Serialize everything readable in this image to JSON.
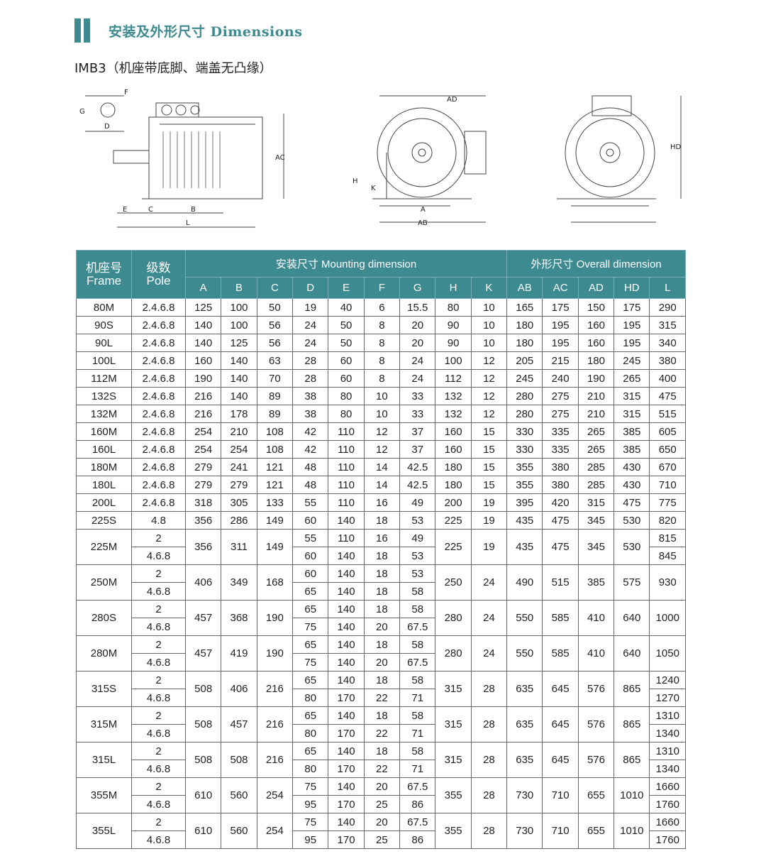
{
  "header": {
    "title": "安装及外形尺寸 Dimensions",
    "subtitle": "IMB3（机座带底脚、端盖无凸缘）"
  },
  "drawing_labels": {
    "F": "F",
    "G": "G",
    "D": "D",
    "E": "E",
    "C": "C",
    "B": "B",
    "L": "L",
    "AC": "AC",
    "AD": "AD",
    "H": "H",
    "K": "K",
    "A": "A",
    "AB": "AB",
    "HD": "HD"
  },
  "table": {
    "frame_header": [
      "机座号",
      "Frame"
    ],
    "pole_header": [
      "级数",
      "Pole"
    ],
    "mounting_header": "安装尺寸 Mounting dimension",
    "overall_header": "外形尺寸 Overall dimension",
    "mounting_cols": [
      "A",
      "B",
      "C",
      "D",
      "E",
      "F",
      "G",
      "H",
      "K"
    ],
    "overall_cols": [
      "AB",
      "AC",
      "AD",
      "HD",
      "L"
    ],
    "rows": [
      {
        "frame": "80M",
        "A": "125",
        "B": "100",
        "C": "50",
        "H": "80",
        "K": "10",
        "AB": "165",
        "AC": "175",
        "AD": "150",
        "HD": "175",
        "sub": [
          {
            "pole": "2.4.6.8",
            "D": "19",
            "E": "40",
            "F": "6",
            "G": "15.5",
            "L": "290"
          }
        ]
      },
      {
        "frame": "90S",
        "A": "140",
        "B": "100",
        "C": "56",
        "H": "90",
        "K": "10",
        "AB": "180",
        "AC": "195",
        "AD": "160",
        "HD": "195",
        "sub": [
          {
            "pole": "2.4.6.8",
            "D": "24",
            "E": "50",
            "F": "8",
            "G": "20",
            "L": "315"
          }
        ]
      },
      {
        "frame": "90L",
        "A": "140",
        "B": "125",
        "C": "56",
        "H": "90",
        "K": "10",
        "AB": "180",
        "AC": "195",
        "AD": "160",
        "HD": "195",
        "sub": [
          {
            "pole": "2.4.6.8",
            "D": "24",
            "E": "50",
            "F": "8",
            "G": "20",
            "L": "340"
          }
        ]
      },
      {
        "frame": "100L",
        "A": "160",
        "B": "140",
        "C": "63",
        "H": "100",
        "K": "12",
        "AB": "205",
        "AC": "215",
        "AD": "180",
        "HD": "245",
        "sub": [
          {
            "pole": "2.4.6.8",
            "D": "28",
            "E": "60",
            "F": "8",
            "G": "24",
            "L": "380"
          }
        ]
      },
      {
        "frame": "112M",
        "A": "190",
        "B": "140",
        "C": "70",
        "H": "112",
        "K": "12",
        "AB": "245",
        "AC": "240",
        "AD": "190",
        "HD": "265",
        "sub": [
          {
            "pole": "2.4.6.8",
            "D": "28",
            "E": "60",
            "F": "8",
            "G": "24",
            "L": "400"
          }
        ]
      },
      {
        "frame": "132S",
        "A": "216",
        "B": "140",
        "C": "89",
        "H": "132",
        "K": "12",
        "AB": "280",
        "AC": "275",
        "AD": "210",
        "HD": "315",
        "sub": [
          {
            "pole": "2.4.6.8",
            "D": "38",
            "E": "80",
            "F": "10",
            "G": "33",
            "L": "475"
          }
        ]
      },
      {
        "frame": "132M",
        "A": "216",
        "B": "178",
        "C": "89",
        "H": "132",
        "K": "12",
        "AB": "280",
        "AC": "275",
        "AD": "210",
        "HD": "315",
        "sub": [
          {
            "pole": "2.4.6.8",
            "D": "38",
            "E": "80",
            "F": "10",
            "G": "33",
            "L": "515"
          }
        ]
      },
      {
        "frame": "160M",
        "A": "254",
        "B": "210",
        "C": "108",
        "H": "160",
        "K": "15",
        "AB": "330",
        "AC": "335",
        "AD": "265",
        "HD": "385",
        "sub": [
          {
            "pole": "2.4.6.8",
            "D": "42",
            "E": "110",
            "F": "12",
            "G": "37",
            "L": "605"
          }
        ]
      },
      {
        "frame": "160L",
        "A": "254",
        "B": "254",
        "C": "108",
        "H": "160",
        "K": "15",
        "AB": "330",
        "AC": "335",
        "AD": "265",
        "HD": "385",
        "sub": [
          {
            "pole": "2.4.6.8",
            "D": "42",
            "E": "110",
            "F": "12",
            "G": "37",
            "L": "650"
          }
        ]
      },
      {
        "frame": "180M",
        "A": "279",
        "B": "241",
        "C": "121",
        "H": "180",
        "K": "15",
        "AB": "355",
        "AC": "380",
        "AD": "285",
        "HD": "430",
        "sub": [
          {
            "pole": "2.4.6.8",
            "D": "48",
            "E": "110",
            "F": "14",
            "G": "42.5",
            "L": "670"
          }
        ]
      },
      {
        "frame": "180L",
        "A": "279",
        "B": "279",
        "C": "121",
        "H": "180",
        "K": "15",
        "AB": "355",
        "AC": "380",
        "AD": "285",
        "HD": "430",
        "sub": [
          {
            "pole": "2.4.6.8",
            "D": "48",
            "E": "110",
            "F": "14",
            "G": "42.5",
            "L": "710"
          }
        ]
      },
      {
        "frame": "200L",
        "A": "318",
        "B": "305",
        "C": "133",
        "H": "200",
        "K": "19",
        "AB": "395",
        "AC": "420",
        "AD": "315",
        "HD": "475",
        "sub": [
          {
            "pole": "2.4.6.8",
            "D": "55",
            "E": "110",
            "F": "16",
            "G": "49",
            "L": "775"
          }
        ]
      },
      {
        "frame": "225S",
        "A": "356",
        "B": "286",
        "C": "149",
        "H": "225",
        "K": "19",
        "AB": "435",
        "AC": "475",
        "AD": "345",
        "HD": "530",
        "sub": [
          {
            "pole": "4.8",
            "D": "60",
            "E": "140",
            "F": "18",
            "G": "53",
            "L": "820"
          }
        ]
      },
      {
        "frame": "225M",
        "A": "356",
        "B": "311",
        "C": "149",
        "H": "225",
        "K": "19",
        "AB": "435",
        "AC": "475",
        "AD": "345",
        "HD": "530",
        "sub": [
          {
            "pole": "2",
            "D": "55",
            "E": "110",
            "F": "16",
            "G": "49",
            "L": "815"
          },
          {
            "pole": "4.6.8",
            "D": "60",
            "E": "140",
            "F": "18",
            "G": "53",
            "L": "845"
          }
        ]
      },
      {
        "frame": "250M",
        "A": "406",
        "B": "349",
        "C": "168",
        "H": "250",
        "K": "24",
        "AB": "490",
        "AC": "515",
        "AD": "385",
        "HD": "575",
        "L": "930",
        "sub": [
          {
            "pole": "2",
            "D": "60",
            "E": "140",
            "F": "18",
            "G": "53"
          },
          {
            "pole": "4.6.8",
            "D": "65",
            "E": "140",
            "F": "18",
            "G": "58"
          }
        ]
      },
      {
        "frame": "280S",
        "A": "457",
        "B": "368",
        "C": "190",
        "H": "280",
        "K": "24",
        "AB": "550",
        "AC": "585",
        "AD": "410",
        "HD": "640",
        "L": "1000",
        "sub": [
          {
            "pole": "2",
            "D": "65",
            "E": "140",
            "F": "18",
            "G": "58"
          },
          {
            "pole": "4.6.8",
            "D": "75",
            "E": "140",
            "F": "20",
            "G": "67.5"
          }
        ]
      },
      {
        "frame": "280M",
        "A": "457",
        "B": "419",
        "C": "190",
        "H": "280",
        "K": "24",
        "AB": "550",
        "AC": "585",
        "AD": "410",
        "HD": "640",
        "L": "1050",
        "sub": [
          {
            "pole": "2",
            "D": "65",
            "E": "140",
            "F": "18",
            "G": "58"
          },
          {
            "pole": "4.6.8",
            "D": "75",
            "E": "140",
            "F": "20",
            "G": "67.5"
          }
        ]
      },
      {
        "frame": "315S",
        "A": "508",
        "B": "406",
        "C": "216",
        "H": "315",
        "K": "28",
        "AB": "635",
        "AC": "645",
        "AD": "576",
        "HD": "865",
        "sub": [
          {
            "pole": "2",
            "D": "65",
            "E": "140",
            "F": "18",
            "G": "58",
            "L": "1240"
          },
          {
            "pole": "4.6.8",
            "D": "80",
            "E": "170",
            "F": "22",
            "G": "71",
            "L": "1270"
          }
        ]
      },
      {
        "frame": "315M",
        "A": "508",
        "B": "457",
        "C": "216",
        "H": "315",
        "K": "28",
        "AB": "635",
        "AC": "645",
        "AD": "576",
        "HD": "865",
        "sub": [
          {
            "pole": "2",
            "D": "65",
            "E": "140",
            "F": "18",
            "G": "58",
            "L": "1310"
          },
          {
            "pole": "4.6.8",
            "D": "80",
            "E": "170",
            "F": "22",
            "G": "71",
            "L": "1340"
          }
        ]
      },
      {
        "frame": "315L",
        "A": "508",
        "B": "508",
        "C": "216",
        "H": "315",
        "K": "28",
        "AB": "635",
        "AC": "645",
        "AD": "576",
        "HD": "865",
        "sub": [
          {
            "pole": "2",
            "D": "65",
            "E": "140",
            "F": "18",
            "G": "58",
            "L": "1310"
          },
          {
            "pole": "4.6.8",
            "D": "80",
            "E": "170",
            "F": "22",
            "G": "71",
            "L": "1340"
          }
        ]
      },
      {
        "frame": "355M",
        "A": "610",
        "B": "560",
        "C": "254",
        "H": "355",
        "K": "28",
        "AB": "730",
        "AC": "710",
        "AD": "655",
        "HD": "1010",
        "sub": [
          {
            "pole": "2",
            "D": "75",
            "E": "140",
            "F": "20",
            "G": "67.5",
            "L": "1660"
          },
          {
            "pole": "4.6.8",
            "D": "95",
            "E": "170",
            "F": "25",
            "G": "86",
            "L": "1760"
          }
        ]
      },
      {
        "frame": "355L",
        "A": "610",
        "B": "560",
        "C": "254",
        "H": "355",
        "K": "28",
        "AB": "730",
        "AC": "710",
        "AD": "655",
        "HD": "1010",
        "sub": [
          {
            "pole": "2",
            "D": "75",
            "E": "140",
            "F": "20",
            "G": "67.5",
            "L": "1660"
          },
          {
            "pole": "4.6.8",
            "D": "95",
            "E": "170",
            "F": "25",
            "G": "86",
            "L": "1760"
          }
        ]
      }
    ]
  },
  "colors": {
    "accent": "#3d8a91"
  }
}
